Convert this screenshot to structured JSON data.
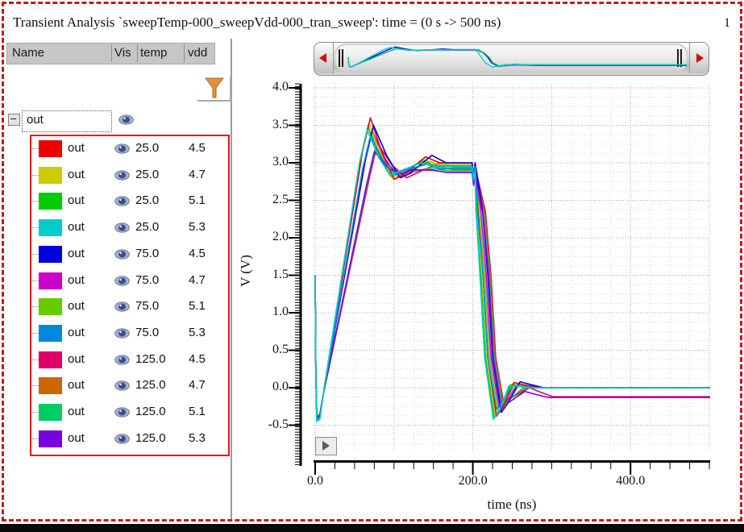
{
  "frame": {
    "page_number": "1"
  },
  "header": {
    "title": "Transient Analysis `sweepTemp-000_sweepVdd-000_tran_sweep': time = (0 s -> 500 ns)"
  },
  "signal_table": {
    "columns": [
      "Name",
      "Vis",
      "temp",
      "vdd"
    ],
    "group": {
      "name": "out"
    }
  },
  "chart_data": {
    "type": "line",
    "xlabel": "time (ns)",
    "ylabel": "V (V)",
    "xlim": [
      0,
      545
    ],
    "ylim": [
      -0.85,
      4.05
    ],
    "grid": "dotted",
    "legend_position": "left-table",
    "x_ticks": [
      {
        "t": 0,
        "label": "0.0"
      },
      {
        "t": 200,
        "label": "200.0"
      },
      {
        "t": 400,
        "label": "400.0"
      }
    ],
    "y_ticks": [
      {
        "v": 4.0,
        "label": "4.0"
      },
      {
        "v": 3.5,
        "label": "3.5"
      },
      {
        "v": 3.0,
        "label": "3.0"
      },
      {
        "v": 2.5,
        "label": "2.5"
      },
      {
        "v": 2.0,
        "label": "2.0"
      },
      {
        "v": 1.5,
        "label": "1.5"
      },
      {
        "v": 1.0,
        "label": "1.0"
      },
      {
        "v": 0.5,
        "label": "0.5"
      },
      {
        "v": 0.0,
        "label": "0.0"
      },
      {
        "v": -0.5,
        "label": "-0.5"
      }
    ],
    "series": [
      {
        "name": "out",
        "temp": "25.0",
        "vdd": "4.5",
        "color": "#ee0000",
        "keypoints": {
          "start": [
            0,
            1.5
          ],
          "dip": [
            2,
            -0.42
          ],
          "peak": [
            70,
            3.6
          ],
          "ring_low": [
            100,
            2.78
          ],
          "rebound": [
            140,
            3.08
          ],
          "plateau": [
            200,
            3.0
          ],
          "fall_low": [
            230,
            -0.38
          ],
          "overshoot": [
            252,
            0.07
          ],
          "final": [
            500,
            0.0
          ]
        }
      },
      {
        "name": "out",
        "temp": "25.0",
        "vdd": "4.7",
        "color": "#cccc00",
        "keypoints": {
          "start": [
            0,
            1.5
          ],
          "dip": [
            2,
            -0.42
          ],
          "peak": [
            68,
            3.53
          ],
          "ring_low": [
            98,
            2.8
          ],
          "rebound": [
            138,
            3.04
          ],
          "plateau": [
            200,
            2.98
          ],
          "fall_low": [
            228,
            -0.36
          ],
          "overshoot": [
            250,
            0.05
          ],
          "final": [
            500,
            0.0
          ]
        }
      },
      {
        "name": "out",
        "temp": "25.0",
        "vdd": "5.1",
        "color": "#00cc00",
        "keypoints": {
          "start": [
            0,
            1.5
          ],
          "dip": [
            2,
            -0.43
          ],
          "peak": [
            67,
            3.48
          ],
          "ring_low": [
            96,
            2.82
          ],
          "rebound": [
            136,
            3.02
          ],
          "plateau": [
            200,
            2.96
          ],
          "fall_low": [
            227,
            -0.4
          ],
          "overshoot": [
            248,
            0.04
          ],
          "final": [
            500,
            0.0
          ]
        }
      },
      {
        "name": "out",
        "temp": "25.0",
        "vdd": "5.3",
        "color": "#00cccc",
        "keypoints": {
          "start": [
            0,
            1.5
          ],
          "dip": [
            2,
            -0.45
          ],
          "peak": [
            66,
            3.44
          ],
          "ring_low": [
            95,
            2.83
          ],
          "rebound": [
            135,
            3.0
          ],
          "plateau": [
            200,
            2.95
          ],
          "fall_low": [
            226,
            -0.42
          ],
          "overshoot": [
            246,
            0.03
          ],
          "final": [
            500,
            0.0
          ]
        }
      },
      {
        "name": "out",
        "temp": "75.0",
        "vdd": "4.5",
        "color": "#0000dd",
        "keypoints": {
          "start": [
            0,
            1.5
          ],
          "dip": [
            2,
            -0.4
          ],
          "peak": [
            74,
            3.5
          ],
          "ring_low": [
            108,
            2.8
          ],
          "rebound": [
            148,
            3.1
          ],
          "plateau": [
            200,
            3.0
          ],
          "fall_low": [
            236,
            -0.33
          ],
          "overshoot": [
            260,
            0.08
          ],
          "final": [
            500,
            0.0
          ]
        }
      },
      {
        "name": "out",
        "temp": "75.0",
        "vdd": "4.7",
        "color": "#cc00cc",
        "keypoints": {
          "start": [
            0,
            1.5
          ],
          "dip": [
            2,
            -0.4
          ],
          "peak": [
            72,
            3.43
          ],
          "ring_low": [
            105,
            2.81
          ],
          "rebound": [
            145,
            3.02
          ],
          "plateau": [
            200,
            2.95
          ],
          "fall_low": [
            234,
            -0.31
          ],
          "overshoot": [
            257,
            0.05
          ],
          "final": [
            500,
            0.0
          ]
        }
      },
      {
        "name": "out",
        "temp": "75.0",
        "vdd": "5.1",
        "color": "#66cc00",
        "keypoints": {
          "start": [
            0,
            1.5
          ],
          "dip": [
            2,
            -0.41
          ],
          "peak": [
            71,
            3.39
          ],
          "ring_low": [
            103,
            2.83
          ],
          "rebound": [
            143,
            3.0
          ],
          "plateau": [
            200,
            2.93
          ],
          "fall_low": [
            232,
            -0.3
          ],
          "overshoot": [
            254,
            0.04
          ],
          "final": [
            500,
            0.0
          ]
        }
      },
      {
        "name": "out",
        "temp": "75.0",
        "vdd": "5.3",
        "color": "#0088dd",
        "keypoints": {
          "start": [
            0,
            1.5
          ],
          "dip": [
            2,
            -0.42
          ],
          "peak": [
            70,
            3.36
          ],
          "ring_low": [
            101,
            2.84
          ],
          "rebound": [
            141,
            2.98
          ],
          "plateau": [
            200,
            2.92
          ],
          "fall_low": [
            230,
            -0.29
          ],
          "overshoot": [
            251,
            0.03
          ],
          "final": [
            500,
            0.0
          ]
        }
      },
      {
        "name": "out",
        "temp": "125.0",
        "vdd": "4.5",
        "color": "#dd0066",
        "keypoints": {
          "start": [
            0,
            1.5
          ],
          "dip": [
            2,
            -0.38
          ],
          "peak": [
            79,
            3.26
          ],
          "ring_low": [
            116,
            2.8
          ],
          "rebound": [
            158,
            3.0
          ],
          "plateau": [
            200,
            2.94
          ],
          "fall_low": [
            240,
            -0.26
          ],
          "overshoot": [
            272,
            0.0
          ],
          "final": [
            500,
            -0.12
          ]
        }
      },
      {
        "name": "out",
        "temp": "125.0",
        "vdd": "4.7",
        "color": "#cc6600",
        "keypoints": {
          "start": [
            0,
            1.5
          ],
          "dip": [
            2,
            -0.38
          ],
          "peak": [
            77,
            3.21
          ],
          "ring_low": [
            113,
            2.82
          ],
          "rebound": [
            155,
            2.96
          ],
          "plateau": [
            200,
            2.91
          ],
          "fall_low": [
            239,
            -0.26
          ],
          "overshoot": [
            268,
            0.0
          ],
          "final": [
            500,
            0.0
          ]
        }
      },
      {
        "name": "out",
        "temp": "125.0",
        "vdd": "5.1",
        "color": "#00cc66",
        "keypoints": {
          "start": [
            0,
            1.5
          ],
          "dip": [
            2,
            -0.39
          ],
          "peak": [
            76,
            3.18
          ],
          "ring_low": [
            111,
            2.84
          ],
          "rebound": [
            152,
            2.92
          ],
          "plateau": [
            200,
            2.89
          ],
          "fall_low": [
            238,
            -0.28
          ],
          "overshoot": [
            264,
            0.0
          ],
          "final": [
            500,
            0.0
          ]
        }
      },
      {
        "name": "out",
        "temp": "125.0",
        "vdd": "5.3",
        "color": "#7700dd",
        "keypoints": {
          "start": [
            0,
            1.45
          ],
          "dip": [
            2,
            -0.4
          ],
          "peak": [
            75,
            3.15
          ],
          "ring_low": [
            109,
            2.85
          ],
          "rebound": [
            150,
            2.9
          ],
          "plateau": [
            200,
            2.87
          ],
          "fall_low": [
            237,
            -0.32
          ],
          "overshoot": [
            266,
            -0.05
          ],
          "final": [
            500,
            -0.13
          ]
        }
      }
    ],
    "draw_order": [
      8,
      9,
      10,
      5,
      6,
      1,
      2,
      0,
      4,
      11,
      7,
      3
    ],
    "overview_series": [
      11,
      4,
      10,
      3
    ]
  }
}
